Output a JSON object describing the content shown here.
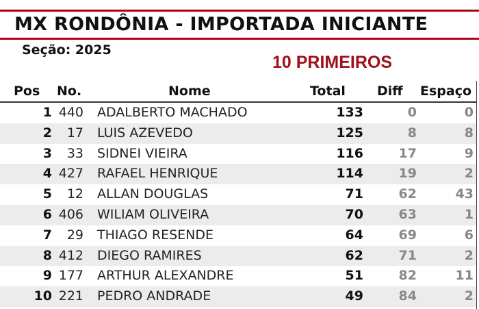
{
  "title": "MX RONDÔNIA - IMPORTADA INICIANTE",
  "season": "Seção: 2025",
  "subtitle": "10 PRIMEIROS",
  "colors": {
    "accent": "#b00012",
    "subtitle": "#a0101a",
    "diff": "#888888"
  },
  "columns": {
    "pos": "Pos",
    "no": "No.",
    "name": "Nome",
    "total": "Total",
    "diff": "Diff",
    "gap": "Espaço"
  },
  "rows": [
    {
      "pos": "1",
      "no": "440",
      "name": "ADALBERTO MACHADO",
      "total": "133",
      "diff": "0",
      "gap": "0"
    },
    {
      "pos": "2",
      "no": "17",
      "name": "LUIS AZEVEDO",
      "total": "125",
      "diff": "8",
      "gap": "8"
    },
    {
      "pos": "3",
      "no": "33",
      "name": "SIDNEI VIEIRA",
      "total": "116",
      "diff": "17",
      "gap": "9"
    },
    {
      "pos": "4",
      "no": "427",
      "name": "RAFAEL HENRIQUE",
      "total": "114",
      "diff": "19",
      "gap": "2"
    },
    {
      "pos": "5",
      "no": "12",
      "name": "ALLAN DOUGLAS",
      "total": "71",
      "diff": "62",
      "gap": "43"
    },
    {
      "pos": "6",
      "no": "406",
      "name": "WILIAM OLIVEIRA",
      "total": "70",
      "diff": "63",
      "gap": "1"
    },
    {
      "pos": "7",
      "no": "29",
      "name": "THIAGO RESENDE",
      "total": "64",
      "diff": "69",
      "gap": "6"
    },
    {
      "pos": "8",
      "no": "412",
      "name": "DIEGO RAMIRES",
      "total": "62",
      "diff": "71",
      "gap": "2"
    },
    {
      "pos": "9",
      "no": "177",
      "name": "ARTHUR ALEXANDRE",
      "total": "51",
      "diff": "82",
      "gap": "11"
    },
    {
      "pos": "10",
      "no": "221",
      "name": "PEDRO ANDRADE",
      "total": "49",
      "diff": "84",
      "gap": "2"
    }
  ]
}
